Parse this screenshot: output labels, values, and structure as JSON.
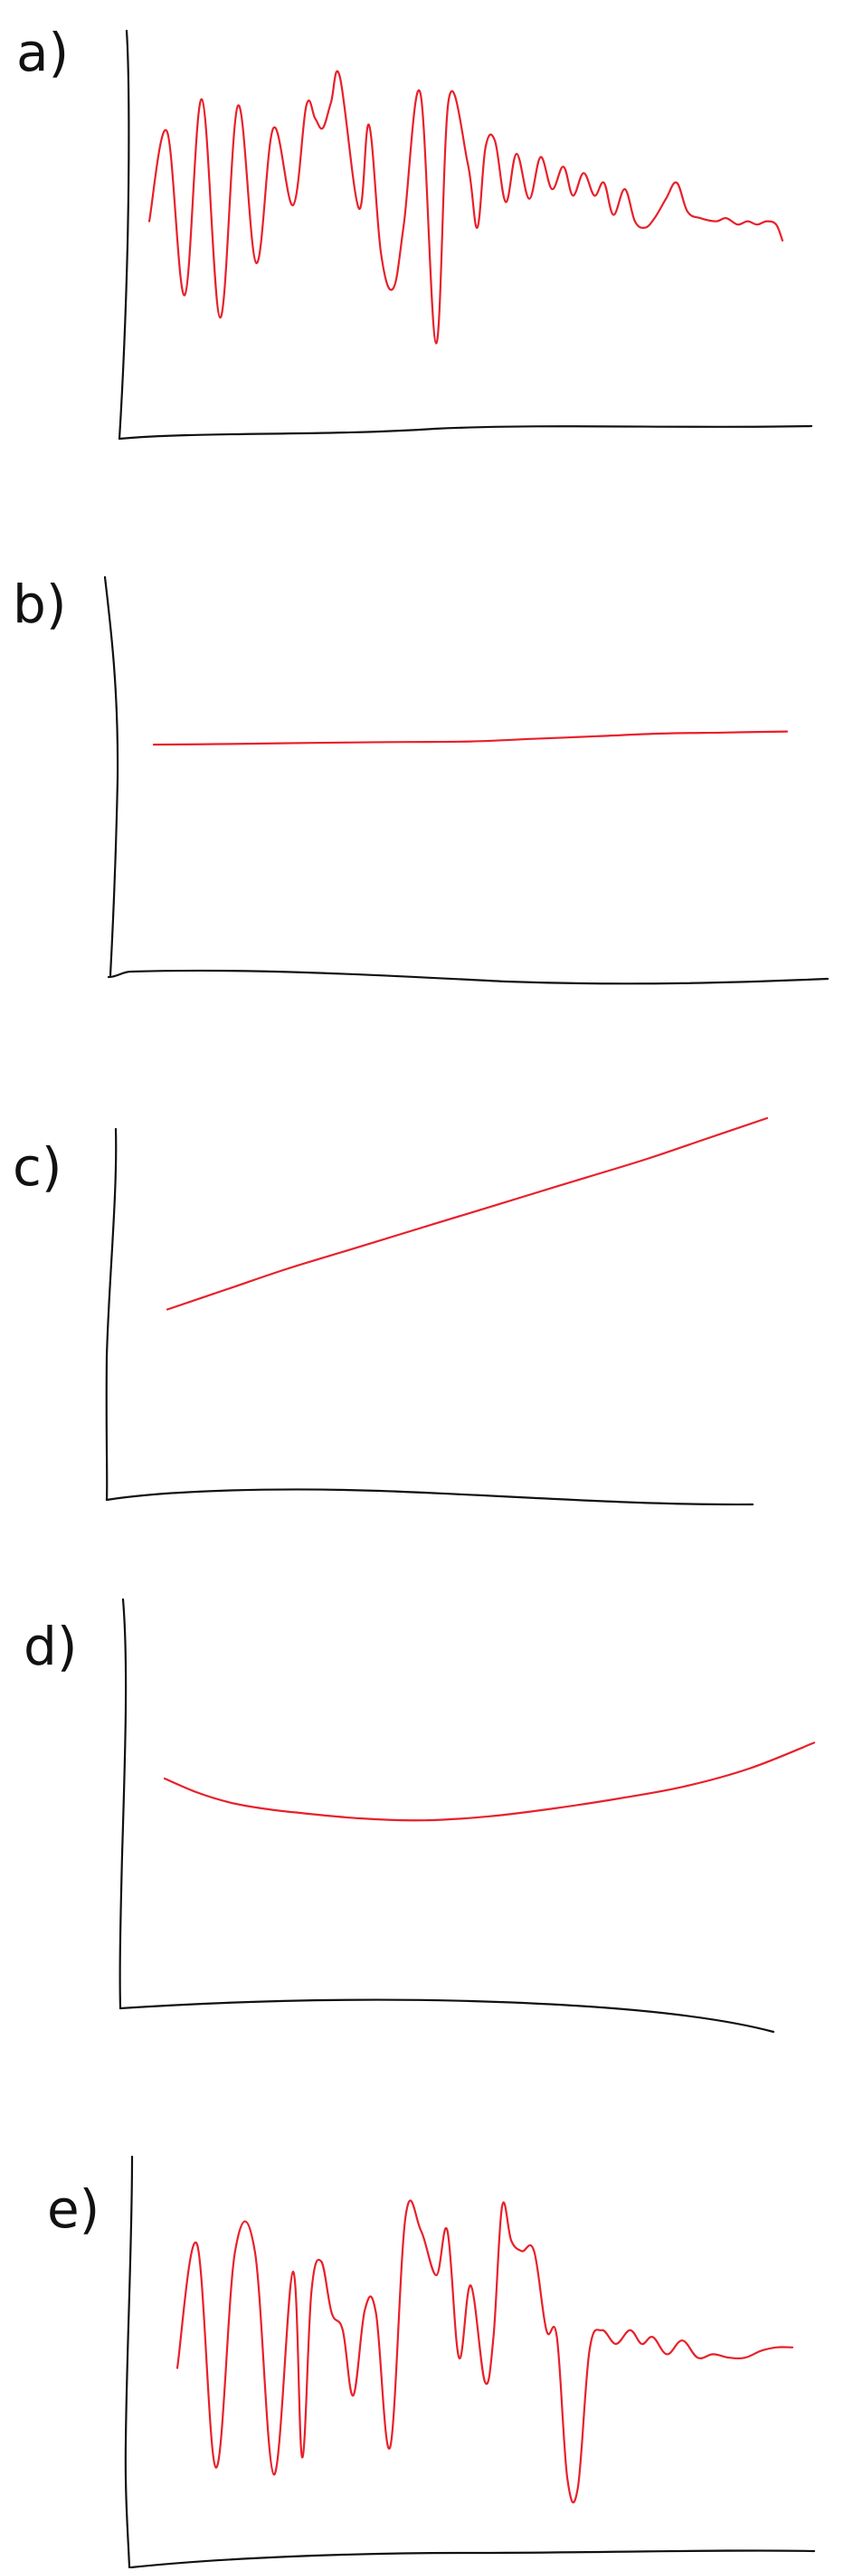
{
  "chart_data": [
    {
      "type": "line",
      "label": "a)",
      "line_color": "#e8202a",
      "axis_color": "#111111",
      "grid": false,
      "ticks": false,
      "xlim": [
        0,
        100
      ],
      "ylim": [
        0,
        100
      ],
      "series": [
        {
          "x": [
            0,
            2.8,
            5.6,
            8.3,
            11.2,
            14.0,
            16.9,
            19.6,
            22.7,
            24.8,
            26.2,
            27.4,
            28.7,
            30.1,
            33.1,
            34.7,
            36.6,
            38.5,
            40.2,
            42.8,
            45.3,
            47.3,
            50.3,
            51.8,
            53.1,
            54.6,
            56.3,
            58.0,
            60.0,
            61.8,
            63.6,
            65.4,
            66.9,
            68.6,
            70.3,
            71.8,
            73.3,
            75.1,
            76.7,
            78.3,
            79.8,
            81.6,
            83.3,
            85.0,
            87.0,
            89.5,
            91.1,
            92.9,
            94.5,
            96.0,
            97.5,
            99.0,
            100
          ],
          "y": [
            48,
            76,
            25,
            86,
            18,
            84,
            35,
            77,
            53,
            84,
            80,
            77,
            85,
            93,
            52,
            78,
            38,
            27,
            47,
            88,
            10,
            86,
            66,
            46,
            71,
            73,
            54,
            69,
            55,
            68,
            58,
            65,
            56,
            63,
            56,
            60,
            50,
            58,
            48,
            46,
            49,
            55,
            60,
            51,
            49,
            48,
            49,
            47,
            48,
            47,
            48,
            47,
            42
          ]
        }
      ]
    },
    {
      "type": "line",
      "label": "b)",
      "line_color": "#e8202a",
      "axis_color": "#111111",
      "grid": false,
      "ticks": false,
      "xlim": [
        0,
        100
      ],
      "ylim": [
        0,
        100
      ],
      "series": [
        {
          "x": [
            0,
            10,
            20,
            30,
            40,
            50,
            60,
            70,
            80,
            90,
            100
          ],
          "y": [
            61,
            61.2,
            61.5,
            61.8,
            62,
            62.2,
            63.2,
            64.2,
            65.2,
            65.6,
            66
          ]
        }
      ]
    },
    {
      "type": "line",
      "label": "c)",
      "line_color": "#e8202a",
      "axis_color": "#111111",
      "grid": false,
      "ticks": false,
      "xlim": [
        0,
        100
      ],
      "ylim": [
        0,
        100
      ],
      "series": [
        {
          "x": [
            0,
            10,
            20,
            30,
            40,
            50,
            60,
            70,
            80,
            90,
            100
          ],
          "y": [
            45,
            50,
            55,
            59.5,
            64,
            68.5,
            73,
            77.5,
            82,
            87,
            92
          ]
        }
      ]
    },
    {
      "type": "line",
      "label": "d)",
      "line_color": "#e8202a",
      "axis_color": "#111111",
      "grid": false,
      "ticks": false,
      "xlim": [
        0,
        100
      ],
      "ylim": [
        0,
        100
      ],
      "series": [
        {
          "x": [
            0,
            5,
            10,
            15,
            20,
            30,
            40,
            50,
            60,
            70,
            80,
            90,
            100
          ],
          "y": [
            70,
            63,
            58,
            55,
            53,
            50,
            49,
            51,
            55,
            60,
            66,
            75,
            88
          ]
        }
      ]
    },
    {
      "type": "line",
      "label": "e)",
      "line_color": "#e8202a",
      "axis_color": "#111111",
      "grid": false,
      "ticks": false,
      "xlim": [
        0,
        100
      ],
      "ylim": [
        0,
        100
      ],
      "series": [
        {
          "x": [
            0,
            3.2,
            6.3,
            9.4,
            12.6,
            15.7,
            18.8,
            20.3,
            21.8,
            23.4,
            25.1,
            26.9,
            28.6,
            30.5,
            32.3,
            34.6,
            37.1,
            39.6,
            42.1,
            43.9,
            45.8,
            47.7,
            50.0,
            51.4,
            52.8,
            54.3,
            56.0,
            58.0,
            60.0,
            61.7,
            63.4,
            65.1,
            67.0,
            69.0,
            71.3,
            73.6,
            75.5,
            77.3,
            79.6,
            82.1,
            84.6,
            87.1,
            89.7,
            92.3,
            94.9,
            97.4,
            100
          ],
          "y": [
            48,
            84,
            19,
            82,
            82,
            17,
            76,
            22,
            70,
            79,
            64,
            59,
            40,
            65,
            64,
            25,
            92,
            88,
            75,
            88,
            51,
            72,
            44,
            57,
            95,
            85,
            82,
            82,
            59,
            57,
            16,
            13,
            53,
            59,
            55,
            59,
            55,
            57,
            52,
            56,
            51,
            52,
            51,
            51,
            53,
            54,
            54
          ]
        }
      ]
    }
  ]
}
